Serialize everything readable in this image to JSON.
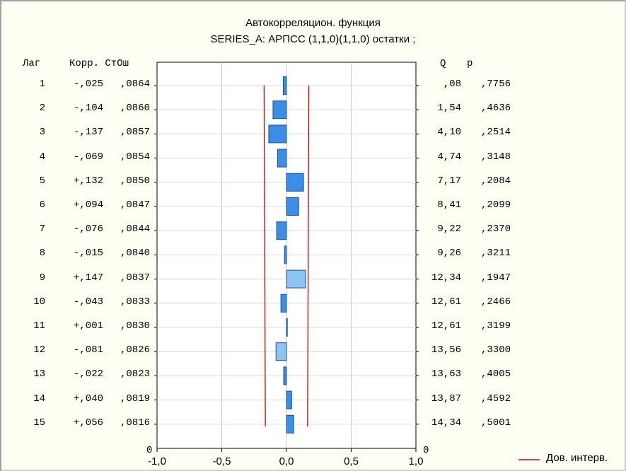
{
  "title": "Автокорреляцион. функция",
  "subtitle": "SERIES_A: АРПСС (1,1,0)(1,1,0) остатки  ;",
  "left_headers": {
    "lag": "Лаг",
    "corr": "Корр. СтОш"
  },
  "right_headers": {
    "q": "Q",
    "p": "p"
  },
  "legend": {
    "label": "Дов. интерв."
  },
  "y_zero_label_left": "0",
  "y_zero_label_right": "0",
  "x_tick_labels": [
    "-1,0",
    "-0,5",
    "0,0",
    "0,5",
    "1,0"
  ],
  "rows": [
    {
      "lag": "1",
      "corr": "-,025",
      "se": ",0864",
      "q": ",08",
      "p": ",7756"
    },
    {
      "lag": "2",
      "corr": "-,104",
      "se": ",0860",
      "q": "1,54",
      "p": ",4636"
    },
    {
      "lag": "3",
      "corr": "-,137",
      "se": ",0857",
      "q": "4,10",
      "p": ",2514"
    },
    {
      "lag": "4",
      "corr": "-,069",
      "se": ",0854",
      "q": "4,74",
      "p": ",3148"
    },
    {
      "lag": "5",
      "corr": "+,132",
      "se": ",0850",
      "q": "7,17",
      "p": ",2084"
    },
    {
      "lag": "6",
      "corr": "+,094",
      "se": ",0847",
      "q": "8,41",
      "p": ",2099"
    },
    {
      "lag": "7",
      "corr": "-,076",
      "se": ",0844",
      "q": "9,22",
      "p": ",2370"
    },
    {
      "lag": "8",
      "corr": "-,015",
      "se": ",0840",
      "q": "9,26",
      "p": ",3211"
    },
    {
      "lag": "9",
      "corr": "+,147",
      "se": ",0837",
      "q": "12,34",
      "p": ",1947"
    },
    {
      "lag": "10",
      "corr": "-,043",
      "se": ",0833",
      "q": "12,61",
      "p": ",2466"
    },
    {
      "lag": "11",
      "corr": "+,001",
      "se": ",0830",
      "q": "12,61",
      "p": ",3199"
    },
    {
      "lag": "12",
      "corr": "-,081",
      "se": ",0826",
      "q": "13,56",
      "p": ",3300"
    },
    {
      "lag": "13",
      "corr": "-,022",
      "se": ",0823",
      "q": "13,63",
      "p": ",4005"
    },
    {
      "lag": "14",
      "corr": "+,040",
      "se": ",0819",
      "q": "13,87",
      "p": ",4592"
    },
    {
      "lag": "15",
      "corr": "+,056",
      "se": ",0816",
      "q": "14,34",
      "p": ",5001"
    }
  ],
  "chart_data": {
    "type": "bar",
    "orientation": "horizontal",
    "title": "Автокорреляцион. функция",
    "subtitle": "SERIES_A: АРПСС (1,1,0)(1,1,0) остатки  ;",
    "categories": [
      "1",
      "2",
      "3",
      "4",
      "5",
      "6",
      "7",
      "8",
      "9",
      "10",
      "11",
      "12",
      "13",
      "14",
      "15"
    ],
    "series": [
      {
        "name": "Корр.",
        "values": [
          -0.025,
          -0.104,
          -0.137,
          -0.069,
          0.132,
          0.094,
          -0.076,
          -0.015,
          0.147,
          -0.043,
          0.001,
          -0.081,
          -0.022,
          0.04,
          0.056
        ]
      }
    ],
    "std_errors": [
      0.0864,
      0.086,
      0.0857,
      0.0854,
      0.085,
      0.0847,
      0.0844,
      0.084,
      0.0837,
      0.0833,
      0.083,
      0.0826,
      0.0823,
      0.0819,
      0.0816
    ],
    "confidence_band": {
      "name": "Дов. интерв.",
      "color": "#cc0000"
    },
    "xlim": [
      -1.0,
      1.0
    ],
    "xticks": [
      -1.0,
      -0.5,
      0.0,
      0.5,
      1.0
    ],
    "grid": true,
    "legend_position": "bottom-right",
    "bar_color": "#3b8ee6",
    "bar_color_light": "#8cc4f2",
    "bar_edge": "#1c4f9a"
  }
}
